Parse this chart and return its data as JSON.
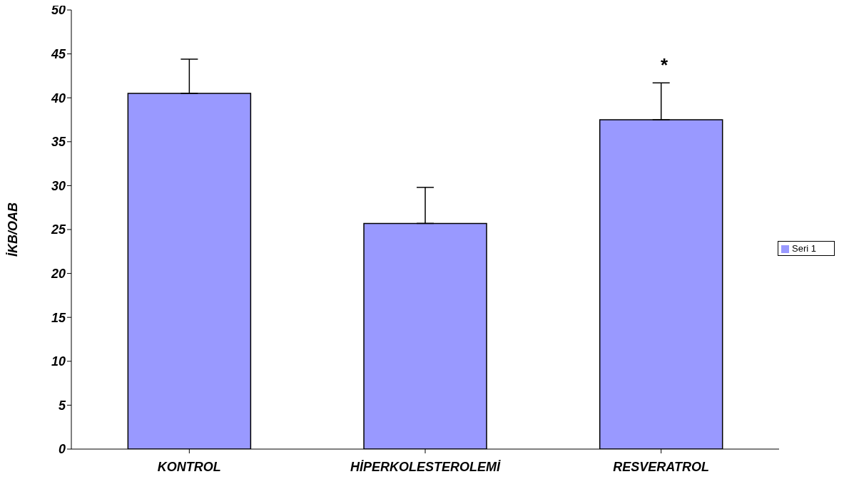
{
  "chart_data": {
    "type": "bar",
    "ylabel": "İKB/OAB",
    "categories": [
      "KONTROL",
      "HİPERKOLESTEROLEMİ",
      "RESVERATROL"
    ],
    "series": [
      {
        "name": "Seri 1",
        "color": "#9999ff",
        "values": [
          40.5,
          25.7,
          37.5
        ],
        "errors": [
          [
            40.5,
            44.4
          ],
          [
            25.7,
            29.8
          ],
          [
            37.5,
            41.7
          ]
        ]
      }
    ],
    "ylim": [
      0,
      50
    ],
    "yticks": [
      0,
      5,
      10,
      15,
      20,
      25,
      30,
      35,
      40,
      45,
      50
    ],
    "grid": false,
    "legend": "right",
    "annotations": [
      "*"
    ]
  }
}
